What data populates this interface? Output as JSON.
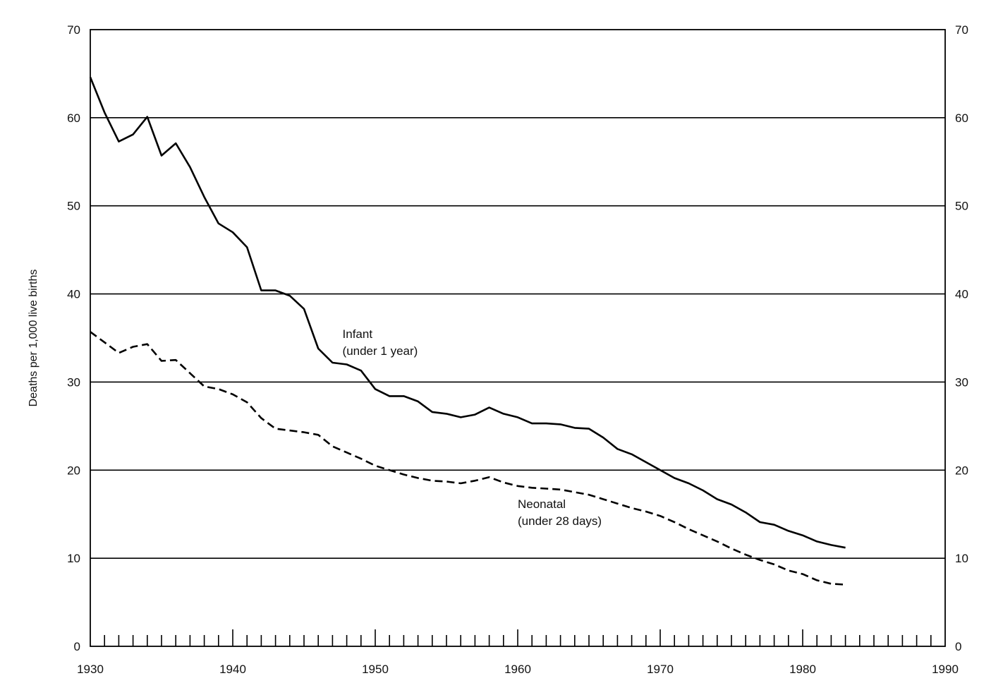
{
  "chart_data": {
    "type": "line",
    "title": "",
    "xlabel": "",
    "ylabel": "Deaths per 1,000 live births",
    "xlim": [
      1930,
      1990
    ],
    "ylim": [
      0,
      70
    ],
    "x_ticks": [
      1930,
      1940,
      1950,
      1960,
      1970,
      1980,
      1990
    ],
    "y_ticks": [
      0,
      10,
      20,
      30,
      40,
      50,
      60,
      70
    ],
    "y_axis_right": true,
    "grid": "horizontal",
    "legend": "none (direct labels)",
    "series": [
      {
        "name": "Infant (under 1 year)",
        "label_lines": [
          "Infant",
          "(under 1 year)"
        ],
        "label_at": [
          1947.7,
          35.0
        ],
        "style": "solid",
        "color": "#000000",
        "x": [
          1930,
          1931,
          1932,
          1933,
          1934,
          1935,
          1936,
          1937,
          1938,
          1939,
          1940,
          1941,
          1942,
          1943,
          1944,
          1945,
          1946,
          1947,
          1948,
          1949,
          1950,
          1951,
          1952,
          1953,
          1954,
          1955,
          1956,
          1957,
          1958,
          1959,
          1960,
          1961,
          1962,
          1963,
          1964,
          1965,
          1966,
          1967,
          1968,
          1969,
          1970,
          1971,
          1972,
          1973,
          1974,
          1975,
          1976,
          1977,
          1978,
          1979,
          1980,
          1981,
          1982,
          1983
        ],
        "values": [
          64.6,
          60.6,
          57.3,
          58.1,
          60.1,
          55.7,
          57.1,
          54.4,
          51.0,
          48.0,
          47.0,
          45.3,
          40.4,
          40.4,
          39.8,
          38.3,
          33.8,
          32.2,
          32.0,
          31.3,
          29.2,
          28.4,
          28.4,
          27.8,
          26.6,
          26.4,
          26.0,
          26.3,
          27.1,
          26.4,
          26.0,
          25.3,
          25.3,
          25.2,
          24.8,
          24.7,
          23.7,
          22.4,
          21.8,
          20.9,
          20.0,
          19.1,
          18.5,
          17.7,
          16.7,
          16.1,
          15.2,
          14.1,
          13.8,
          13.1,
          12.6,
          11.9,
          11.5,
          11.2
        ]
      },
      {
        "name": "Neonatal (under 28 days)",
        "label_lines": [
          "Neonatal",
          "(under 28 days)"
        ],
        "label_at": [
          1960.0,
          15.7
        ],
        "style": "dashed",
        "color": "#000000",
        "x": [
          1930,
          1931,
          1932,
          1933,
          1934,
          1935,
          1936,
          1937,
          1938,
          1939,
          1940,
          1941,
          1942,
          1943,
          1944,
          1945,
          1946,
          1947,
          1948,
          1949,
          1950,
          1951,
          1952,
          1953,
          1954,
          1955,
          1956,
          1957,
          1958,
          1959,
          1960,
          1961,
          1962,
          1963,
          1964,
          1965,
          1966,
          1967,
          1968,
          1969,
          1970,
          1971,
          1972,
          1973,
          1974,
          1975,
          1976,
          1977,
          1978,
          1979,
          1980,
          1981,
          1982,
          1983
        ],
        "values": [
          35.7,
          34.5,
          33.3,
          34.0,
          34.3,
          32.4,
          32.5,
          31.0,
          29.5,
          29.2,
          28.6,
          27.7,
          25.9,
          24.7,
          24.5,
          24.3,
          24.0,
          22.7,
          22.0,
          21.3,
          20.5,
          20.0,
          19.5,
          19.1,
          18.8,
          18.7,
          18.5,
          18.8,
          19.2,
          18.6,
          18.2,
          18.0,
          17.9,
          17.8,
          17.5,
          17.2,
          16.7,
          16.2,
          15.7,
          15.3,
          14.8,
          14.1,
          13.3,
          12.6,
          11.9,
          11.1,
          10.4,
          9.8,
          9.3,
          8.6,
          8.2,
          7.5,
          7.1,
          7.0
        ]
      }
    ]
  }
}
